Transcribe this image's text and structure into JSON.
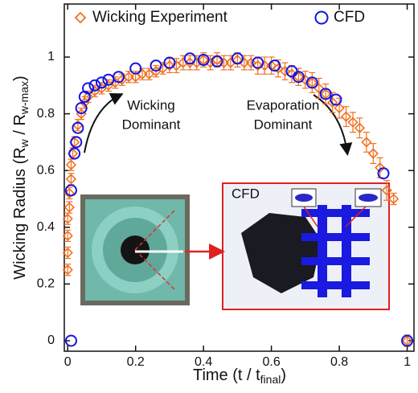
{
  "chart_data": {
    "type": "scatter",
    "xlabel": [
      "Time (t / t",
      "final",
      ")"
    ],
    "ylabel": [
      "Wicking Radius (R",
      "w",
      " / R",
      "w-max",
      ")"
    ],
    "xlim": [
      -0.01,
      1.02
    ],
    "ylim": [
      -0.037,
      1.187
    ],
    "xticks": [
      0,
      0.2,
      0.4,
      0.6,
      0.8,
      1
    ],
    "yticks": [
      0,
      0.2,
      0.4,
      0.6,
      0.8,
      1
    ],
    "series": [
      {
        "name": "Wicking Experiment",
        "color": "#f07020",
        "marker": "diamond",
        "x": [
          0,
          0,
          0,
          0,
          0.005,
          0.005,
          0.01,
          0.01,
          0.015,
          0.02,
          0.03,
          0.04,
          0.05,
          0.06,
          0.08,
          0.1,
          0.12,
          0.14,
          0.16,
          0.18,
          0.2,
          0.22,
          0.24,
          0.26,
          0.28,
          0.3,
          0.32,
          0.34,
          0.36,
          0.38,
          0.4,
          0.42,
          0.44,
          0.46,
          0.48,
          0.5,
          0.52,
          0.54,
          0.56,
          0.58,
          0.6,
          0.62,
          0.64,
          0.66,
          0.68,
          0.7,
          0.72,
          0.74,
          0.76,
          0.78,
          0.8,
          0.82,
          0.84,
          0.86,
          0.88,
          0.9,
          0.92,
          0.94,
          0.96,
          1
        ],
        "values": [
          0.25,
          0.31,
          0.37,
          0.43,
          0.47,
          0.52,
          0.57,
          0.62,
          0.66,
          0.7,
          0.76,
          0.8,
          0.84,
          0.86,
          0.88,
          0.89,
          0.9,
          0.91,
          0.92,
          0.93,
          0.93,
          0.94,
          0.94,
          0.95,
          0.96,
          0.97,
          0.97,
          0.98,
          0.98,
          0.98,
          0.99,
          0.98,
          0.99,
          0.98,
          0.98,
          0.99,
          0.98,
          0.98,
          0.97,
          0.97,
          0.97,
          0.96,
          0.95,
          0.94,
          0.93,
          0.92,
          0.91,
          0.89,
          0.87,
          0.84,
          0.82,
          0.79,
          0.77,
          0.75,
          0.7,
          0.66,
          0.61,
          0.53,
          0.5,
          0
        ],
        "errors": [
          0.02,
          0.02,
          0.02,
          0.02,
          0.02,
          0.02,
          0.02,
          0.02,
          0.02,
          0.02,
          0.02,
          0.02,
          0.02,
          0.02,
          0.02,
          0.02,
          0.02,
          0.02,
          0.02,
          0.02,
          0.02,
          0.02,
          0.02,
          0.02,
          0.02,
          0.025,
          0.025,
          0.025,
          0.025,
          0.025,
          0.025,
          0.025,
          0.025,
          0.025,
          0.025,
          0.025,
          0.025,
          0.025,
          0.03,
          0.03,
          0.03,
          0.03,
          0.03,
          0.03,
          0.03,
          0.03,
          0.035,
          0.035,
          0.035,
          0.035,
          0.035,
          0.035,
          0.035,
          0.035,
          0.035,
          0.035,
          0.035,
          0.035,
          0.02,
          0.02
        ]
      },
      {
        "name": "CFD",
        "color": "#1414e0",
        "marker": "circle",
        "x": [
          0.01,
          0.01,
          0.02,
          0.025,
          0.03,
          0.04,
          0.05,
          0.06,
          0.08,
          0.1,
          0.12,
          0.15,
          0.2,
          0.26,
          0.3,
          0.36,
          0.4,
          0.44,
          0.5,
          0.56,
          0.61,
          0.66,
          0.68,
          0.72,
          0.76,
          0.79,
          0.93,
          1
        ],
        "values": [
          0,
          0.53,
          0.66,
          0.7,
          0.75,
          0.82,
          0.86,
          0.89,
          0.9,
          0.91,
          0.92,
          0.93,
          0.96,
          0.97,
          0.98,
          0.995,
          0.99,
          0.985,
          0.995,
          0.98,
          0.97,
          0.95,
          0.93,
          0.91,
          0.87,
          0.85,
          0.59,
          0
        ]
      }
    ],
    "annotations": [
      {
        "lines": [
          "Wicking",
          "Dominant"
        ]
      },
      {
        "lines": [
          "Evaporation",
          "Dominant"
        ]
      },
      {
        "lines": [
          "CFD"
        ]
      }
    ]
  }
}
